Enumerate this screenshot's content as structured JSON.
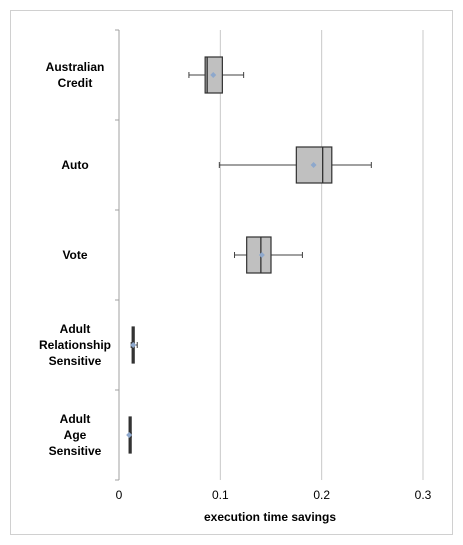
{
  "chart_data": {
    "type": "boxplot",
    "orientation": "horizontal",
    "title": "",
    "xlabel": "execution time savings",
    "ylabel": "",
    "xlim": [
      0,
      0.3
    ],
    "xticks": [
      0,
      0.1,
      0.2,
      0.3
    ],
    "xtick_labels": [
      "0",
      "0.1",
      "0.2",
      "0.3"
    ],
    "grid": "vertical",
    "categories": [
      [
        "Australian",
        "Credit"
      ],
      [
        "Auto"
      ],
      [
        "Vote"
      ],
      [
        "Adult",
        "Relationship",
        "Sensitive"
      ],
      [
        "Adult",
        "Age",
        "Sensitive"
      ]
    ],
    "boxes": [
      {
        "whisker_low": 0.069,
        "q1": 0.085,
        "median": 0.087,
        "q3": 0.102,
        "whisker_high": 0.123,
        "mean": 0.093
      },
      {
        "whisker_low": 0.099,
        "q1": 0.175,
        "median": 0.201,
        "q3": 0.21,
        "whisker_high": 0.249,
        "mean": 0.192
      },
      {
        "whisker_low": 0.114,
        "q1": 0.126,
        "median": 0.14,
        "q3": 0.15,
        "whisker_high": 0.181,
        "mean": 0.141
      },
      {
        "whisker_low": 0.012,
        "q1": 0.013,
        "median": 0.014,
        "q3": 0.015,
        "whisker_high": 0.018,
        "mean": 0.014
      },
      {
        "whisker_low": 0.01,
        "q1": 0.01,
        "median": 0.011,
        "q3": 0.012,
        "whisker_high": 0.012,
        "mean": 0.01
      }
    ],
    "colors": {
      "box_fill": "#c0c0c0",
      "box_stroke": "#303030",
      "mean_marker": "#8ea8cc",
      "grid": "#c8c8c8",
      "axis": "#a0a0a0"
    }
  }
}
